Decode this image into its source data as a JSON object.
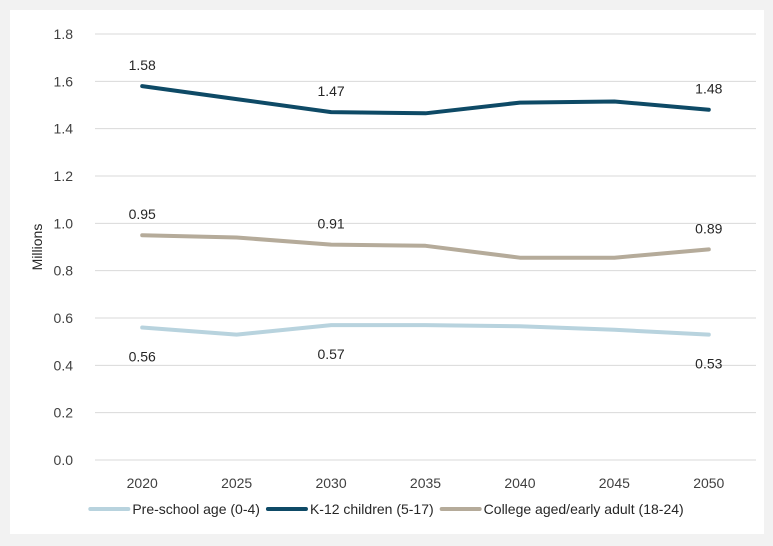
{
  "chart_data": {
    "type": "line",
    "ylabel": "Millions",
    "xlabel": "",
    "ylim": [
      0,
      1.8
    ],
    "yticks": [
      "0.0",
      "0.2",
      "0.4",
      "0.6",
      "0.8",
      "1.0",
      "1.2",
      "1.4",
      "1.6",
      "1.8"
    ],
    "categories": [
      "2020",
      "2025",
      "2030",
      "2035",
      "2040",
      "2045",
      "2050"
    ],
    "grid": true,
    "legend_position": "bottom",
    "series": [
      {
        "name": "Pre-school age (0-4)",
        "color": "#b8d3de",
        "values": [
          0.56,
          0.53,
          0.57,
          0.57,
          0.565,
          0.55,
          0.53
        ],
        "labels": [
          {
            "index": 0,
            "text": "0.56",
            "position": "below"
          },
          {
            "index": 2,
            "text": "0.57",
            "position": "below"
          },
          {
            "index": 6,
            "text": "0.53",
            "position": "below"
          }
        ]
      },
      {
        "name": "K-12 children (5-17)",
        "color": "#0e4a66",
        "values": [
          1.58,
          1.525,
          1.47,
          1.465,
          1.51,
          1.515,
          1.48
        ],
        "labels": [
          {
            "index": 0,
            "text": "1.58",
            "position": "above"
          },
          {
            "index": 2,
            "text": "1.47",
            "position": "above"
          },
          {
            "index": 6,
            "text": "1.48",
            "position": "above"
          }
        ]
      },
      {
        "name": "College aged/early adult (18-24)",
        "color": "#b5ab9a",
        "values": [
          0.95,
          0.94,
          0.91,
          0.905,
          0.855,
          0.855,
          0.89
        ],
        "labels": [
          {
            "index": 0,
            "text": "0.95",
            "position": "above"
          },
          {
            "index": 2,
            "text": "0.91",
            "position": "above"
          },
          {
            "index": 6,
            "text": "0.89",
            "position": "above"
          }
        ]
      }
    ]
  }
}
